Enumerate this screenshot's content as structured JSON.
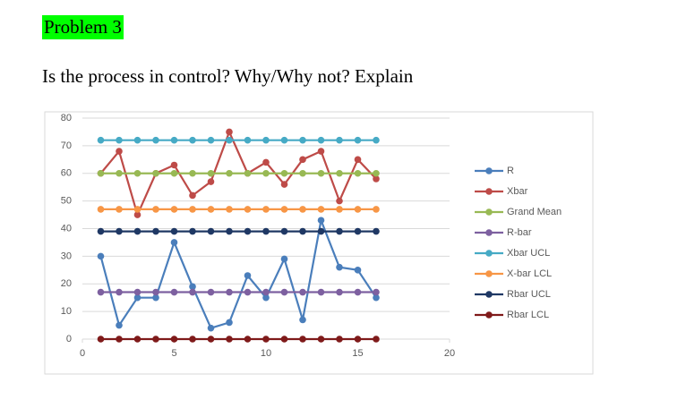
{
  "header": {
    "title": "Problem 3",
    "question": "Is the process in control? Why/Why not? Explain"
  },
  "chart_data": {
    "type": "line",
    "x": [
      1,
      2,
      3,
      4,
      5,
      6,
      7,
      8,
      9,
      10,
      11,
      12,
      13,
      14,
      15,
      16
    ],
    "xlim": [
      0,
      20
    ],
    "xticks": [
      0,
      5,
      10,
      15,
      20
    ],
    "ylim": [
      0,
      80
    ],
    "yticks": [
      0,
      10,
      20,
      30,
      40,
      50,
      60,
      70,
      80
    ],
    "grid": true,
    "legend": "right",
    "series": [
      {
        "name": "R",
        "color": "#4a7ebb",
        "values": [
          30,
          5,
          15,
          15,
          35,
          19,
          4,
          6,
          23,
          15,
          29,
          7,
          43,
          26,
          25,
          15
        ]
      },
      {
        "name": "Xbar",
        "color": "#be4b48",
        "values": [
          60,
          68,
          45,
          60,
          63,
          52,
          57,
          75,
          60,
          64,
          56,
          65,
          68,
          50,
          65,
          58
        ]
      },
      {
        "name": "Grand Mean",
        "color": "#98b954",
        "values": [
          60,
          60,
          60,
          60,
          60,
          60,
          60,
          60,
          60,
          60,
          60,
          60,
          60,
          60,
          60,
          60
        ]
      },
      {
        "name": "R-bar",
        "color": "#7d60a0",
        "values": [
          17,
          17,
          17,
          17,
          17,
          17,
          17,
          17,
          17,
          17,
          17,
          17,
          17,
          17,
          17,
          17
        ]
      },
      {
        "name": "Xbar UCL",
        "color": "#46aac5",
        "values": [
          72,
          72,
          72,
          72,
          72,
          72,
          72,
          72,
          72,
          72,
          72,
          72,
          72,
          72,
          72,
          72
        ]
      },
      {
        "name": "X-bar LCL",
        "color": "#f79646",
        "values": [
          47,
          47,
          47,
          47,
          47,
          47,
          47,
          47,
          47,
          47,
          47,
          47,
          47,
          47,
          47,
          47
        ]
      },
      {
        "name": "Rbar UCL",
        "color": "#1f3864",
        "values": [
          39,
          39,
          39,
          39,
          39,
          39,
          39,
          39,
          39,
          39,
          39,
          39,
          39,
          39,
          39,
          39
        ]
      },
      {
        "name": "Rbar LCL",
        "color": "#7f1a1a",
        "values": [
          0,
          0,
          0,
          0,
          0,
          0,
          0,
          0,
          0,
          0,
          0,
          0,
          0,
          0,
          0,
          0
        ]
      }
    ]
  }
}
